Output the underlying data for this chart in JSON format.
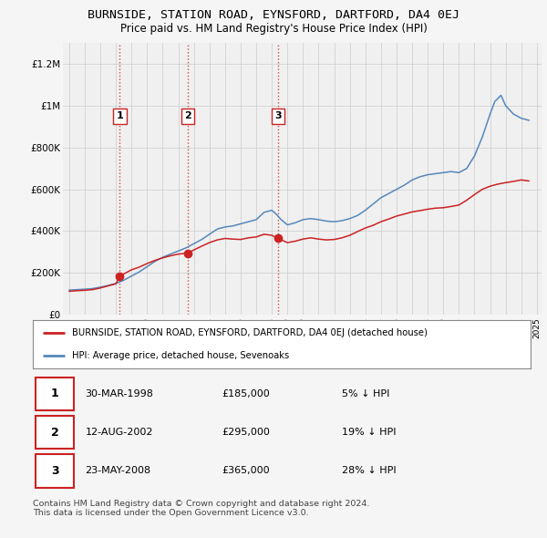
{
  "title": "BURNSIDE, STATION ROAD, EYNSFORD, DARTFORD, DA4 0EJ",
  "subtitle": "Price paid vs. HM Land Registry's House Price Index (HPI)",
  "title_fontsize": 9.5,
  "subtitle_fontsize": 8.5,
  "ylim": [
    0,
    1300000
  ],
  "yticks": [
    0,
    200000,
    400000,
    600000,
    800000,
    1000000,
    1200000
  ],
  "ytick_labels": [
    "£0",
    "£200K",
    "£400K",
    "£600K",
    "£800K",
    "£1M",
    "£1.2M"
  ],
  "hpi_x": [
    1995,
    1995.5,
    1996,
    1996.5,
    1997,
    1997.5,
    1998,
    1998.5,
    1999,
    1999.5,
    2000,
    2000.5,
    2001,
    2001.5,
    2002,
    2002.5,
    2003,
    2003.5,
    2004,
    2004.5,
    2005,
    2005.5,
    2006,
    2006.5,
    2007,
    2007.5,
    2008,
    2008.3,
    2008.6,
    2009,
    2009.5,
    2010,
    2010.5,
    2011,
    2011.5,
    2012,
    2012.5,
    2013,
    2013.5,
    2014,
    2014.5,
    2015,
    2015.5,
    2016,
    2016.5,
    2017,
    2017.5,
    2018,
    2018.5,
    2019,
    2019.5,
    2020,
    2020.5,
    2021,
    2021.5,
    2022,
    2022.3,
    2022.7,
    2023,
    2023.5,
    2024,
    2024.5
  ],
  "hpi_y": [
    118000,
    120000,
    122000,
    125000,
    132000,
    140000,
    150000,
    165000,
    185000,
    205000,
    230000,
    255000,
    275000,
    290000,
    305000,
    320000,
    340000,
    360000,
    385000,
    410000,
    420000,
    425000,
    435000,
    445000,
    455000,
    490000,
    500000,
    480000,
    455000,
    430000,
    440000,
    455000,
    460000,
    455000,
    448000,
    445000,
    450000,
    460000,
    475000,
    500000,
    530000,
    560000,
    580000,
    600000,
    620000,
    645000,
    660000,
    670000,
    675000,
    680000,
    685000,
    680000,
    700000,
    760000,
    850000,
    960000,
    1020000,
    1050000,
    1000000,
    960000,
    940000,
    930000
  ],
  "red_x": [
    1995,
    1995.5,
    1996,
    1996.5,
    1997,
    1997.5,
    1998,
    1998.25,
    1998.5,
    1999,
    1999.5,
    2000,
    2000.5,
    2001,
    2001.5,
    2002,
    2002.5,
    2002.6,
    2003,
    2003.5,
    2004,
    2004.5,
    2005,
    2005.5,
    2006,
    2006.5,
    2007,
    2007.5,
    2008,
    2008.4,
    2008.7,
    2009,
    2009.5,
    2010,
    2010.5,
    2011,
    2011.5,
    2012,
    2012.5,
    2013,
    2013.5,
    2014,
    2014.5,
    2015,
    2015.5,
    2016,
    2016.5,
    2017,
    2017.5,
    2018,
    2018.5,
    2019,
    2019.5,
    2020,
    2020.5,
    2021,
    2021.5,
    2022,
    2022.5,
    2023,
    2023.5,
    2024,
    2024.5
  ],
  "red_y": [
    112000,
    115000,
    117000,
    120000,
    128000,
    138000,
    148000,
    185000,
    195000,
    215000,
    228000,
    245000,
    260000,
    272000,
    282000,
    290000,
    294000,
    295000,
    310000,
    328000,
    345000,
    358000,
    365000,
    362000,
    360000,
    368000,
    372000,
    385000,
    380000,
    365000,
    355000,
    345000,
    352000,
    362000,
    368000,
    362000,
    358000,
    360000,
    368000,
    380000,
    398000,
    415000,
    428000,
    445000,
    458000,
    472000,
    482000,
    492000,
    498000,
    505000,
    510000,
    512000,
    518000,
    525000,
    548000,
    575000,
    600000,
    615000,
    625000,
    632000,
    638000,
    645000,
    640000
  ],
  "hpi_color": "#5588bb",
  "sale_color": "#cc2222",
  "sales": [
    {
      "year": 1998.25,
      "price": 185000,
      "label": "1"
    },
    {
      "year": 2002.6,
      "price": 295000,
      "label": "2"
    },
    {
      "year": 2008.4,
      "price": 365000,
      "label": "3"
    }
  ],
  "vline_color": "#cc2222",
  "legend_label_sale": "BURNSIDE, STATION ROAD, EYNSFORD, DARTFORD, DA4 0EJ (detached house)",
  "legend_label_hpi": "HPI: Average price, detached house, Sevenoaks",
  "table_rows": [
    {
      "num": "1",
      "date": "30-MAR-1998",
      "price": "£185,000",
      "pct": "5% ↓ HPI"
    },
    {
      "num": "2",
      "date": "12-AUG-2002",
      "price": "£295,000",
      "pct": "19% ↓ HPI"
    },
    {
      "num": "3",
      "date": "23-MAY-2008",
      "price": "£365,000",
      "pct": "28% ↓ HPI"
    }
  ],
  "footnote": "Contains HM Land Registry data © Crown copyright and database right 2024.\nThis data is licensed under the Open Government Licence v3.0.",
  "bg_color": "#f5f5f5",
  "plot_bg": "#f0f0f0",
  "grid_color": "#cccccc"
}
